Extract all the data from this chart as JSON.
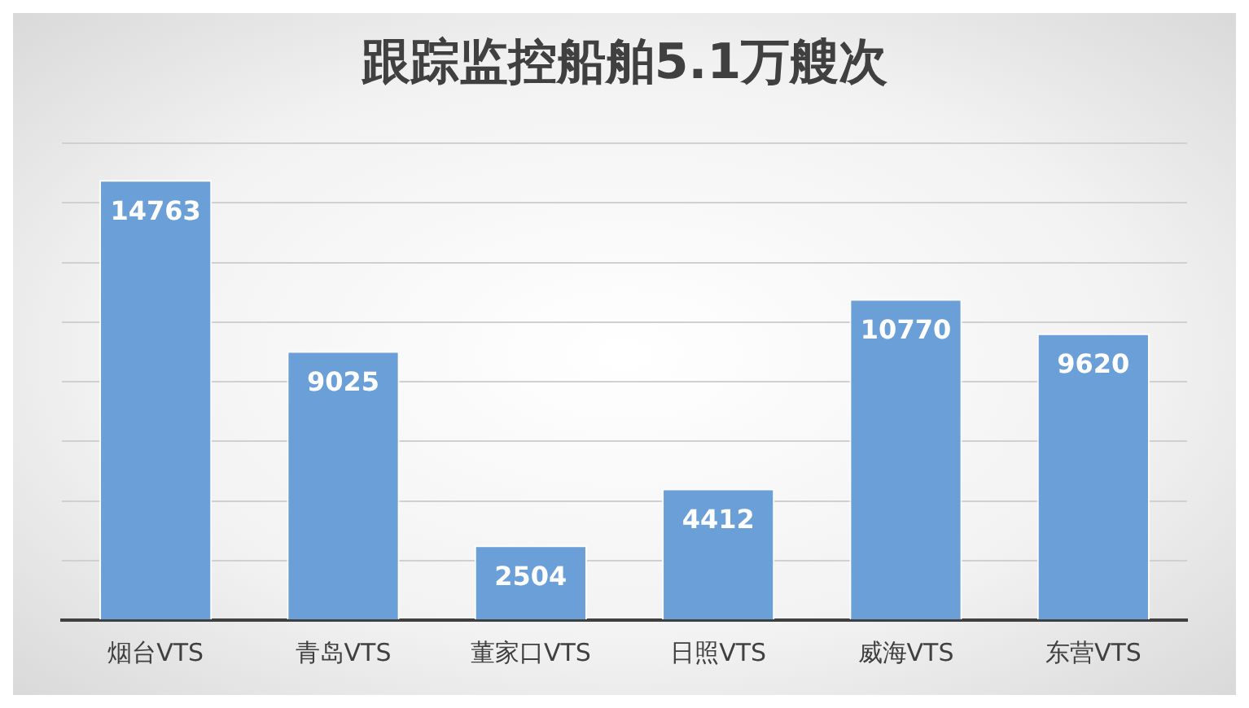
{
  "chart_data": {
    "type": "bar",
    "title": "跟踪监控船舶5.1万艘次",
    "categories": [
      "烟台VTS",
      "青岛VTS",
      "董家口VTS",
      "日照VTS",
      "威海VTS",
      "东营VTS"
    ],
    "values": [
      14763,
      9025,
      2504,
      4412,
      10770,
      9620
    ],
    "color": "#6a9fd8",
    "ylim": [
      0,
      16000
    ],
    "yticks": [
      {
        "value": 0,
        "label": null
      },
      {
        "value": 2000,
        "label": null
      },
      {
        "value": 4000,
        "label": null
      },
      {
        "value": 6000,
        "label": null
      },
      {
        "value": 8000,
        "label": null
      },
      {
        "value": 10000,
        "label": null
      },
      {
        "value": 12000,
        "label": null
      },
      {
        "value": 14000,
        "label": null
      },
      {
        "value": 16000,
        "label": null
      }
    ],
    "tick_labels": "x",
    "grid": "y",
    "data_labels": true,
    "legend": false
  }
}
